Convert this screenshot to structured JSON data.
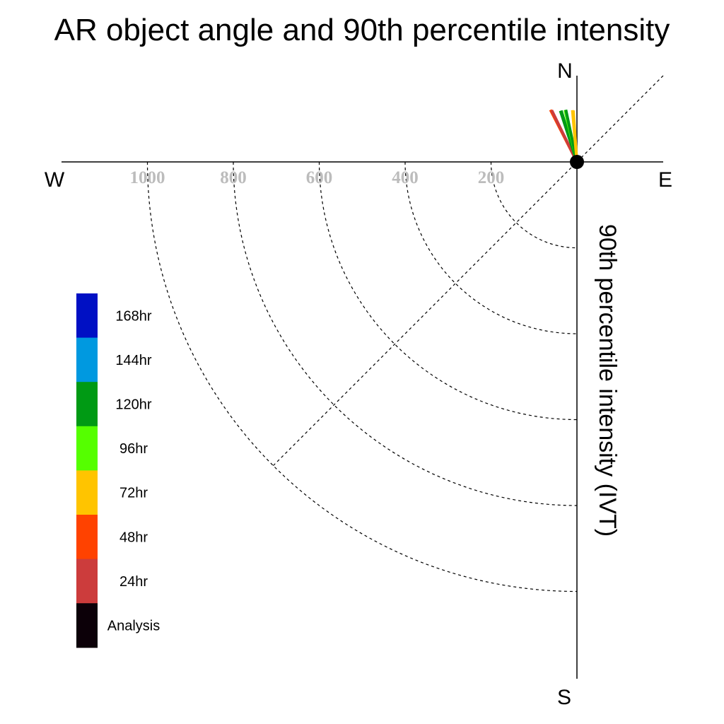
{
  "chart_data": {
    "type": "polar-line",
    "title": "AR object angle and 90th percentile intensity",
    "radial_axis_label": "90th percentile intensity (IVT)",
    "compass": {
      "north": "N",
      "south": "S",
      "east": "E",
      "west": "W"
    },
    "radial_ticks": [
      200,
      400,
      600,
      800,
      1000
    ],
    "radial_ticks_color": "#bcbcbc",
    "grid": true,
    "legend": {
      "placement": "left",
      "entries": [
        {
          "label": "168hr",
          "color": "#0010c4"
        },
        {
          "label": "144hr",
          "color": "#0099e0"
        },
        {
          "label": "120hr",
          "color": "#009a14"
        },
        {
          "label": "96hr",
          "color": "#55ff00"
        },
        {
          "label": "72hr",
          "color": "#ffc400"
        },
        {
          "label": "48hr",
          "color": "#ff4200"
        },
        {
          "label": "24hr",
          "color": "#cc3c3c"
        },
        {
          "label": "Analysis",
          "color": "#0c0008"
        }
      ]
    },
    "series": [
      {
        "name": "48hr",
        "angle_deg": -27,
        "intensity": 136,
        "color": "#ff4200"
      },
      {
        "name": "24hr",
        "angle_deg": -26,
        "intensity": 134,
        "color": "#cc3c3c"
      },
      {
        "name": "120hr",
        "angle_deg": -18,
        "intensity": 125,
        "color": "#009a14"
      },
      {
        "name": "120hr",
        "angle_deg": -17,
        "intensity": 125,
        "color": "#009a14"
      },
      {
        "name": "96hr",
        "angle_deg": -13,
        "intensity": 124,
        "color": "#55ff00"
      },
      {
        "name": "120hr",
        "angle_deg": -12,
        "intensity": 124,
        "color": "#009a14"
      },
      {
        "name": "72hr",
        "angle_deg": -5,
        "intensity": 121,
        "color": "#ffc400"
      },
      {
        "name": "72hr",
        "angle_deg": -4,
        "intensity": 120,
        "color": "#ffc400"
      }
    ]
  }
}
